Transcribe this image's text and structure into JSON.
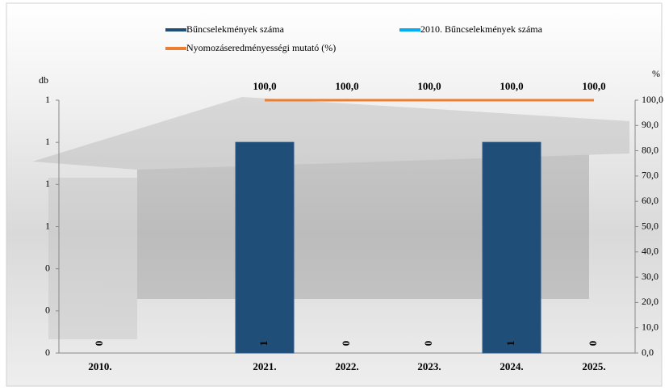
{
  "chart_data": {
    "type": "bar-line",
    "categories": [
      "2010.",
      null,
      "2021.",
      "2022.",
      "2023.",
      "2024.",
      "2025."
    ],
    "series": [
      {
        "name": "Bűncselekmények száma",
        "type": "bar",
        "color": "#1f4e79",
        "values": [
          0,
          null,
          1,
          0,
          0,
          1,
          0
        ]
      },
      {
        "name": "2010. Bűncselekmények száma",
        "type": "bar",
        "color": "#00b0f0",
        "values": [
          null,
          null,
          null,
          null,
          null,
          null,
          null
        ]
      },
      {
        "name": "Nyomozáseredményességi mutató (%)",
        "type": "line",
        "axis": "y2",
        "color": "#ed7d31",
        "values": [
          null,
          null,
          100,
          100,
          100,
          100,
          100
        ],
        "value_labels": [
          null,
          null,
          "100,0",
          "100,0",
          "100,0",
          "100,0",
          "100,0"
        ]
      }
    ],
    "ylabel": "db",
    "y2label": "%",
    "ylim": [
      0,
      1.2
    ],
    "yticks": [
      0,
      {
        "value": 0.2,
        "label": "0"
      },
      {
        "value": 0.4,
        "label": "0"
      },
      {
        "value": 0.6,
        "label": "1"
      },
      {
        "value": 0.8,
        "label": "1"
      },
      1,
      {
        "value": 1.2,
        "label": "1"
      }
    ],
    "y2lim": [
      0,
      100
    ],
    "y2ticks": [
      {
        "value": 0,
        "label": "0,0"
      },
      {
        "value": 10,
        "label": "10,0"
      },
      {
        "value": 20,
        "label": "20,0"
      },
      {
        "value": 30,
        "label": "30,0"
      },
      {
        "value": 40,
        "label": "40,0"
      },
      {
        "value": 50,
        "label": "50,0"
      },
      {
        "value": 60,
        "label": "60,0"
      },
      {
        "value": 70,
        "label": "70,0"
      },
      {
        "value": 80,
        "label": "80,0"
      },
      {
        "value": 90,
        "label": "90,0"
      },
      {
        "value": 100,
        "label": "100,0"
      }
    ]
  }
}
